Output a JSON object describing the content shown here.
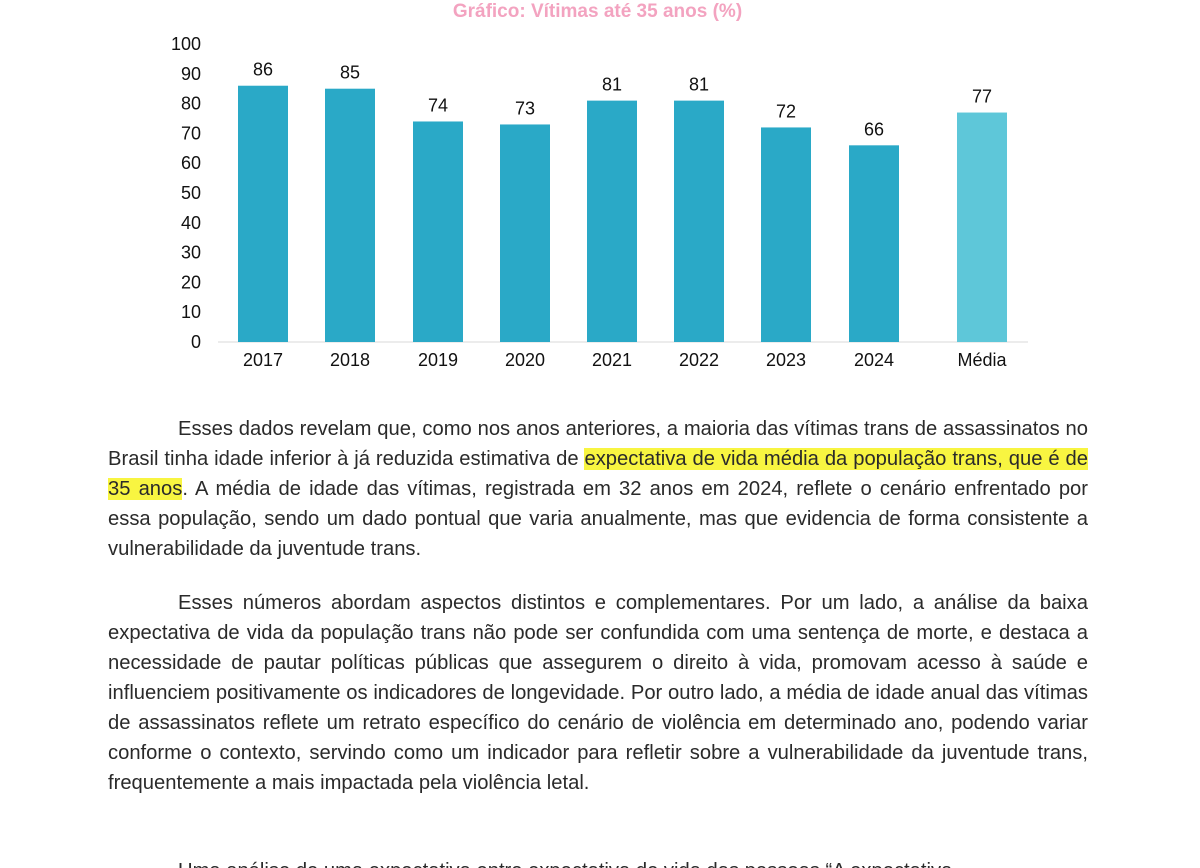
{
  "chart_data": {
    "type": "bar",
    "title": "Gráfico: Vítimas até 35 anos (%)",
    "categories": [
      "2017",
      "2018",
      "2019",
      "2020",
      "2021",
      "2022",
      "2023",
      "2024",
      "Média"
    ],
    "values": [
      86,
      85,
      74,
      73,
      81,
      81,
      72,
      66,
      77
    ],
    "data_labels": [
      "86",
      "85",
      "74",
      "73",
      "81",
      "81",
      "72",
      "66",
      "77"
    ],
    "ylim": [
      0,
      100
    ],
    "yticks": [
      "0",
      "10",
      "20",
      "30",
      "40",
      "50",
      "60",
      "70",
      "80",
      "90",
      "100"
    ],
    "xlabel": "",
    "ylabel": "",
    "grid": false,
    "legend": "none",
    "bar_color": "#2aa9c7",
    "highlight_color": "#5ec7d9",
    "title_color": "#f3a3c0"
  },
  "text": {
    "p1": {
      "before": "Esses dados revelam que, como nos anos anteriores, a maioria das vítimas trans de assassinatos no Brasil tinha idade inferior à já reduzida estimativa de ",
      "highlight": "expectativa de vida média da população trans, que é de 35 anos",
      "after": ". A média de idade das vítimas, registrada em 32 anos em 2024, reflete o cenário enfrentado por essa população, sendo um dado pontual que varia anualmente, mas que evidencia de forma consistente a vulnerabilidade da juventude trans."
    },
    "p2": "Esses números abordam aspectos distintos e complementares. Por um lado, a análise da baixa expectativa de vida da população trans não pode ser confundida com uma sentença de morte, e destaca a necessidade de pautar políticas públicas que assegurem o direito à vida, promovam acesso à saúde e influenciem positivamente os indicadores de longevidade. Por outro lado, a média de idade anual das vítimas de assassinatos reflete um retrato específico do cenário de violência em determinado ano, podendo variar conforme o contexto, servindo como um indicador para refletir sobre a vulnerabilidade da juventude trans, frequentemente a mais impactada pela violência letal.",
    "p3_partial": "Uma análise de uma expectativa entre expectativa de vida das pessoas “A expectativa"
  }
}
